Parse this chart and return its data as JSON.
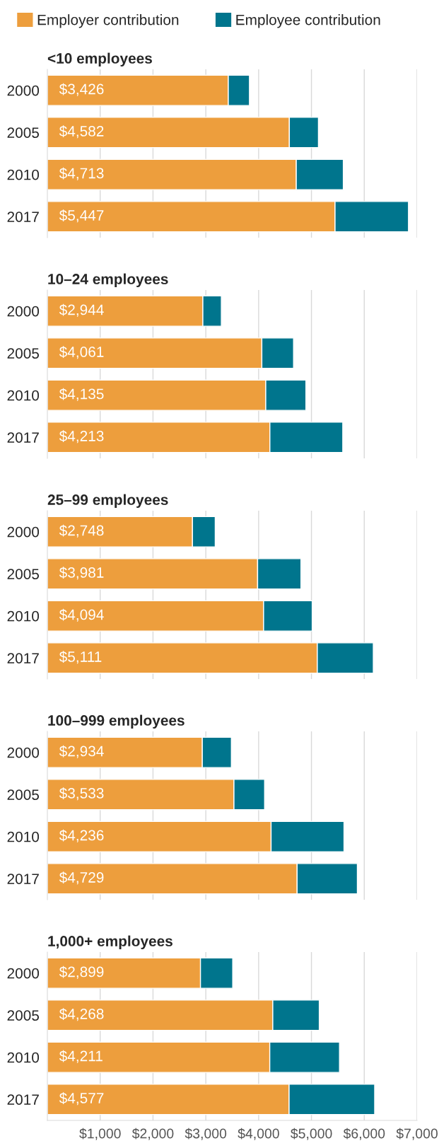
{
  "chart_data": [
    {
      "type": "bar",
      "orientation": "horizontal",
      "stacked": true,
      "title": "<10 employees",
      "categories": [
        "2000",
        "2005",
        "2010",
        "2017"
      ],
      "xlim": [
        0,
        7000
      ],
      "xticks": [
        {
          "value": 1000,
          "label": null
        },
        {
          "value": 2000,
          "label": null
        },
        {
          "value": 3000,
          "label": null
        },
        {
          "value": 4000,
          "label": null
        },
        {
          "value": 5000,
          "label": null
        },
        {
          "value": 6000,
          "label": null
        },
        {
          "value": 7000,
          "label": null
        }
      ],
      "grid": "x",
      "tick_labels": "y",
      "legend": "top",
      "series": [
        {
          "name": "Employer contribution",
          "color": "#ed9e3d",
          "values": [
            3426,
            4582,
            4713,
            5447
          ],
          "value_labels": [
            "$3,426",
            "$4,582",
            "$4,713",
            "$5,447"
          ]
        },
        {
          "name": "Employee contribution",
          "color": "#00758d",
          "values": [
            400,
            550,
            890,
            1390
          ]
        }
      ]
    },
    {
      "type": "bar",
      "orientation": "horizontal",
      "stacked": true,
      "title": "10–24 employees",
      "categories": [
        "2000",
        "2005",
        "2010",
        "2017"
      ],
      "xlim": [
        0,
        7000
      ],
      "xticks": [
        {
          "value": 1000,
          "label": null
        },
        {
          "value": 2000,
          "label": null
        },
        {
          "value": 3000,
          "label": null
        },
        {
          "value": 4000,
          "label": null
        },
        {
          "value": 5000,
          "label": null
        },
        {
          "value": 6000,
          "label": null
        },
        {
          "value": 7000,
          "label": null
        }
      ],
      "grid": "x",
      "tick_labels": "y",
      "series": [
        {
          "color": "#ed9e3d",
          "values": [
            2944,
            4061,
            4135,
            4213
          ],
          "value_labels": [
            "$2,944",
            "$4,061",
            "$4,135",
            "$4,213"
          ]
        },
        {
          "color": "#00758d",
          "values": [
            350,
            600,
            760,
            1380
          ]
        }
      ]
    },
    {
      "type": "bar",
      "orientation": "horizontal",
      "stacked": true,
      "title": "25–99 employees",
      "categories": [
        "2000",
        "2005",
        "2010",
        "2017"
      ],
      "xlim": [
        0,
        7000
      ],
      "xticks": [
        {
          "value": 1000,
          "label": null
        },
        {
          "value": 2000,
          "label": null
        },
        {
          "value": 3000,
          "label": null
        },
        {
          "value": 4000,
          "label": null
        },
        {
          "value": 5000,
          "label": null
        },
        {
          "value": 6000,
          "label": null
        },
        {
          "value": 7000,
          "label": null
        }
      ],
      "grid": "x",
      "tick_labels": "y",
      "series": [
        {
          "color": "#ed9e3d",
          "values": [
            2748,
            3981,
            4094,
            5111
          ],
          "value_labels": [
            "$2,748",
            "$3,981",
            "$4,094",
            "$5,111"
          ]
        },
        {
          "color": "#00758d",
          "values": [
            430,
            820,
            920,
            1060
          ]
        }
      ]
    },
    {
      "type": "bar",
      "orientation": "horizontal",
      "stacked": true,
      "title": "100–999 employees",
      "categories": [
        "2000",
        "2005",
        "2010",
        "2017"
      ],
      "xlim": [
        0,
        7000
      ],
      "xticks": [
        {
          "value": 1000,
          "label": null
        },
        {
          "value": 2000,
          "label": null
        },
        {
          "value": 3000,
          "label": null
        },
        {
          "value": 4000,
          "label": null
        },
        {
          "value": 5000,
          "label": null
        },
        {
          "value": 6000,
          "label": null
        },
        {
          "value": 7000,
          "label": null
        }
      ],
      "grid": "x",
      "tick_labels": "y",
      "series": [
        {
          "color": "#ed9e3d",
          "values": [
            2934,
            3533,
            4236,
            4729
          ],
          "value_labels": [
            "$2,934",
            "$3,533",
            "$4,236",
            "$4,729"
          ]
        },
        {
          "color": "#00758d",
          "values": [
            550,
            580,
            1380,
            1140
          ]
        }
      ]
    },
    {
      "type": "bar",
      "orientation": "horizontal",
      "stacked": true,
      "title": "1,000+ employees",
      "categories": [
        "2000",
        "2005",
        "2010",
        "2017"
      ],
      "xlim": [
        0,
        7000
      ],
      "xticks": [
        {
          "value": 1000,
          "label": "$1,000"
        },
        {
          "value": 2000,
          "label": "$2,000"
        },
        {
          "value": 3000,
          "label": "$3,000"
        },
        {
          "value": 4000,
          "label": "$4,000"
        },
        {
          "value": 5000,
          "label": "$5,000"
        },
        {
          "value": 6000,
          "label": "$6,000"
        },
        {
          "value": 7000,
          "label": "$7,000"
        }
      ],
      "grid": "x",
      "series": [
        {
          "color": "#ed9e3d",
          "values": [
            2899,
            4268,
            4211,
            4577
          ],
          "value_labels": [
            "$2,899",
            "$4,268",
            "$4,211",
            "$4,577"
          ]
        },
        {
          "color": "#00758d",
          "values": [
            610,
            880,
            1320,
            1620
          ]
        }
      ]
    }
  ]
}
